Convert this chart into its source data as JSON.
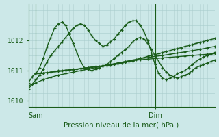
{
  "bg_color": "#cce8e8",
  "grid_color_v": "#b0d0d0",
  "grid_color_h": "#a8cccc",
  "line_color": "#1a5c1a",
  "xlabel": "Pression niveau de la mer( hPa )",
  "xlabel_color": "#1a5c1a",
  "tick_color": "#1a5c1a",
  "ylim": [
    1009.8,
    1013.2
  ],
  "yticks": [
    1010,
    1011,
    1012
  ],
  "xlim": [
    0,
    50
  ],
  "sam_x": 2,
  "dim_x": 34,
  "xtick_positions": [
    2,
    34
  ],
  "xtick_labels": [
    "Sam",
    "Dim"
  ],
  "vline_positions": [
    2,
    34
  ],
  "series": [
    {
      "x": [
        0,
        1,
        2,
        3,
        4,
        5,
        6,
        7,
        8,
        9,
        10,
        11,
        12,
        13,
        14,
        15,
        16,
        17,
        18,
        19,
        20,
        21,
        22,
        23,
        24,
        25,
        26,
        27,
        28,
        29,
        30,
        31,
        32,
        33,
        34,
        35,
        36,
        37,
        38,
        39,
        40,
        41,
        42,
        43,
        44,
        45,
        46,
        47,
        48,
        49,
        50
      ],
      "y": [
        1010.6,
        1010.8,
        1010.9,
        1011.1,
        1011.4,
        1011.8,
        1012.1,
        1012.4,
        1012.55,
        1012.6,
        1012.5,
        1012.2,
        1011.9,
        1011.6,
        1011.3,
        1011.1,
        1011.05,
        1011.0,
        1011.05,
        1011.1,
        1011.15,
        1011.2,
        1011.3,
        1011.4,
        1011.5,
        1011.6,
        1011.7,
        1011.8,
        1011.95,
        1012.05,
        1012.1,
        1012.05,
        1011.9,
        1011.7,
        1011.5,
        1011.3,
        1011.1,
        1010.95,
        1010.85,
        1010.8,
        1010.75,
        1010.8,
        1010.85,
        1010.9,
        1011.0,
        1011.1,
        1011.15,
        1011.2,
        1011.25,
        1011.3,
        1011.35
      ],
      "lw": 1.0
    },
    {
      "x": [
        0,
        1,
        2,
        3,
        4,
        5,
        6,
        7,
        8,
        9,
        10,
        11,
        12,
        13,
        14,
        15,
        16,
        17,
        18,
        19,
        20,
        21,
        22,
        23,
        24,
        25,
        26,
        27,
        28,
        29,
        30,
        31,
        32,
        33,
        34,
        35,
        36,
        37,
        38,
        39,
        40,
        41,
        42,
        43,
        44,
        45,
        46,
        47,
        48,
        49,
        50
      ],
      "y": [
        1010.4,
        1010.55,
        1010.7,
        1010.85,
        1011.05,
        1011.3,
        1011.5,
        1011.65,
        1011.8,
        1011.95,
        1012.1,
        1012.25,
        1012.4,
        1012.5,
        1012.55,
        1012.5,
        1012.35,
        1012.15,
        1012.0,
        1011.9,
        1011.8,
        1011.85,
        1011.95,
        1012.05,
        1012.2,
        1012.35,
        1012.5,
        1012.6,
        1012.65,
        1012.65,
        1012.5,
        1012.3,
        1012.0,
        1011.6,
        1011.2,
        1010.9,
        1010.75,
        1010.7,
        1010.75,
        1010.8,
        1010.9,
        1010.95,
        1011.0,
        1011.1,
        1011.2,
        1011.3,
        1011.38,
        1011.45,
        1011.5,
        1011.55,
        1011.6
      ],
      "lw": 1.0
    },
    {
      "x": [
        2,
        3,
        4,
        5,
        6,
        7,
        8,
        9,
        10,
        11,
        12,
        13,
        14,
        15,
        16,
        17,
        18,
        19,
        20,
        21,
        22,
        23,
        24,
        25,
        26,
        27,
        28,
        29,
        30,
        31,
        32,
        33,
        34,
        35,
        36,
        37,
        38,
        39,
        40,
        41,
        42,
        43,
        44,
        45,
        46,
        47,
        48,
        49,
        50
      ],
      "y": [
        1010.9,
        1010.9,
        1010.92,
        1010.93,
        1010.95,
        1010.97,
        1011.0,
        1011.0,
        1011.02,
        1011.03,
        1011.05,
        1011.05,
        1011.07,
        1011.08,
        1011.1,
        1011.12,
        1011.13,
        1011.14,
        1011.15,
        1011.17,
        1011.18,
        1011.2,
        1011.22,
        1011.25,
        1011.28,
        1011.3,
        1011.33,
        1011.36,
        1011.4,
        1011.43,
        1011.47,
        1011.5,
        1011.53,
        1011.56,
        1011.6,
        1011.63,
        1011.66,
        1011.7,
        1011.73,
        1011.76,
        1011.8,
        1011.83,
        1011.86,
        1011.9,
        1011.93,
        1011.96,
        1012.0,
        1012.03,
        1012.06
      ],
      "lw": 1.0
    },
    {
      "x": [
        2,
        4,
        6,
        8,
        10,
        12,
        14,
        16,
        18,
        20,
        22,
        24,
        26,
        28,
        30,
        32,
        34,
        36,
        38,
        40,
        42,
        44,
        46,
        48,
        50
      ],
      "y": [
        1010.9,
        1010.92,
        1010.95,
        1010.97,
        1011.0,
        1011.03,
        1011.07,
        1011.1,
        1011.13,
        1011.16,
        1011.2,
        1011.25,
        1011.3,
        1011.35,
        1011.4,
        1011.43,
        1011.47,
        1011.5,
        1011.54,
        1011.58,
        1011.62,
        1011.66,
        1011.7,
        1011.75,
        1011.8
      ],
      "lw": 1.0
    },
    {
      "x": [
        0,
        2,
        4,
        6,
        8,
        10,
        12,
        14,
        16,
        18,
        20,
        22,
        24,
        26,
        28,
        30,
        32,
        34,
        36,
        38,
        40,
        42,
        44,
        46,
        48,
        50
      ],
      "y": [
        1010.5,
        1010.6,
        1010.7,
        1010.78,
        1010.85,
        1010.9,
        1010.95,
        1011.0,
        1011.05,
        1011.1,
        1011.15,
        1011.2,
        1011.25,
        1011.3,
        1011.33,
        1011.36,
        1011.38,
        1011.4,
        1011.42,
        1011.44,
        1011.46,
        1011.48,
        1011.5,
        1011.52,
        1011.54,
        1011.56
      ],
      "lw": 1.0
    }
  ]
}
